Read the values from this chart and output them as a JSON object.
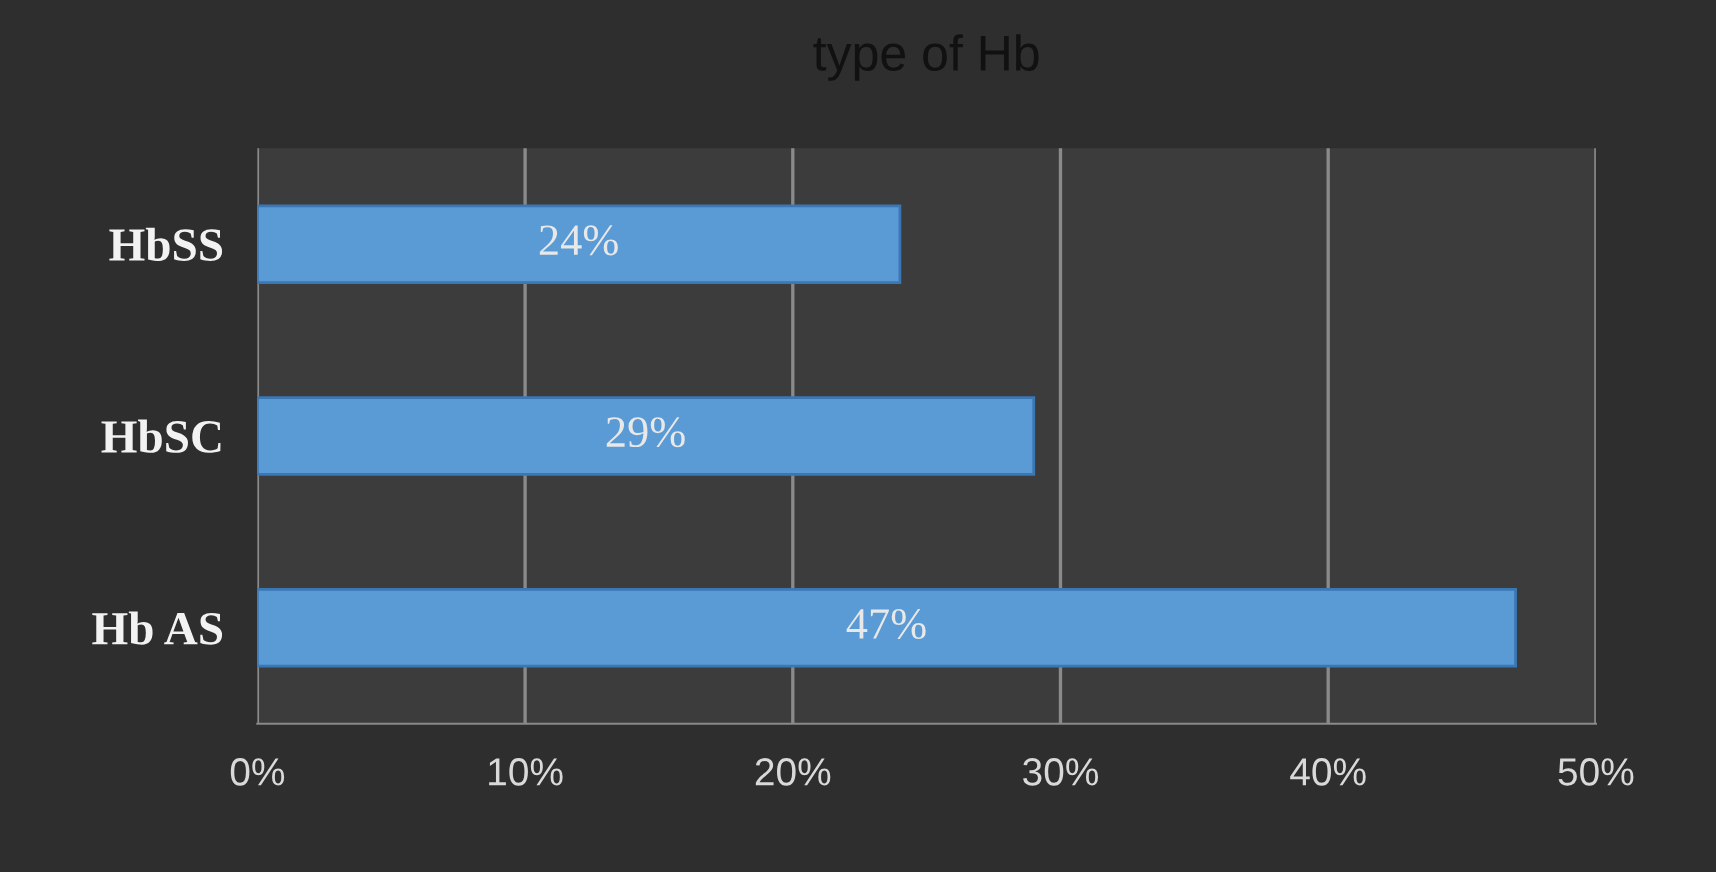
{
  "chart_data": {
    "type": "bar",
    "orientation": "horizontal",
    "title": "type of Hb",
    "categories": [
      "HbSS",
      "HbSC",
      "Hb AS"
    ],
    "values": [
      24,
      29,
      47
    ],
    "color": "#5b9bd5",
    "value_labels": [
      "24%",
      "29%",
      "47%"
    ],
    "xlim": [
      0,
      50
    ],
    "xticks": [
      {
        "value": 0,
        "label": "0%"
      },
      {
        "value": 10,
        "label": "10%"
      },
      {
        "value": 20,
        "label": "20%"
      },
      {
        "value": 30,
        "label": "30%"
      },
      {
        "value": 40,
        "label": "40%"
      },
      {
        "value": 50,
        "label": "50%"
      }
    ],
    "grid": "x"
  }
}
